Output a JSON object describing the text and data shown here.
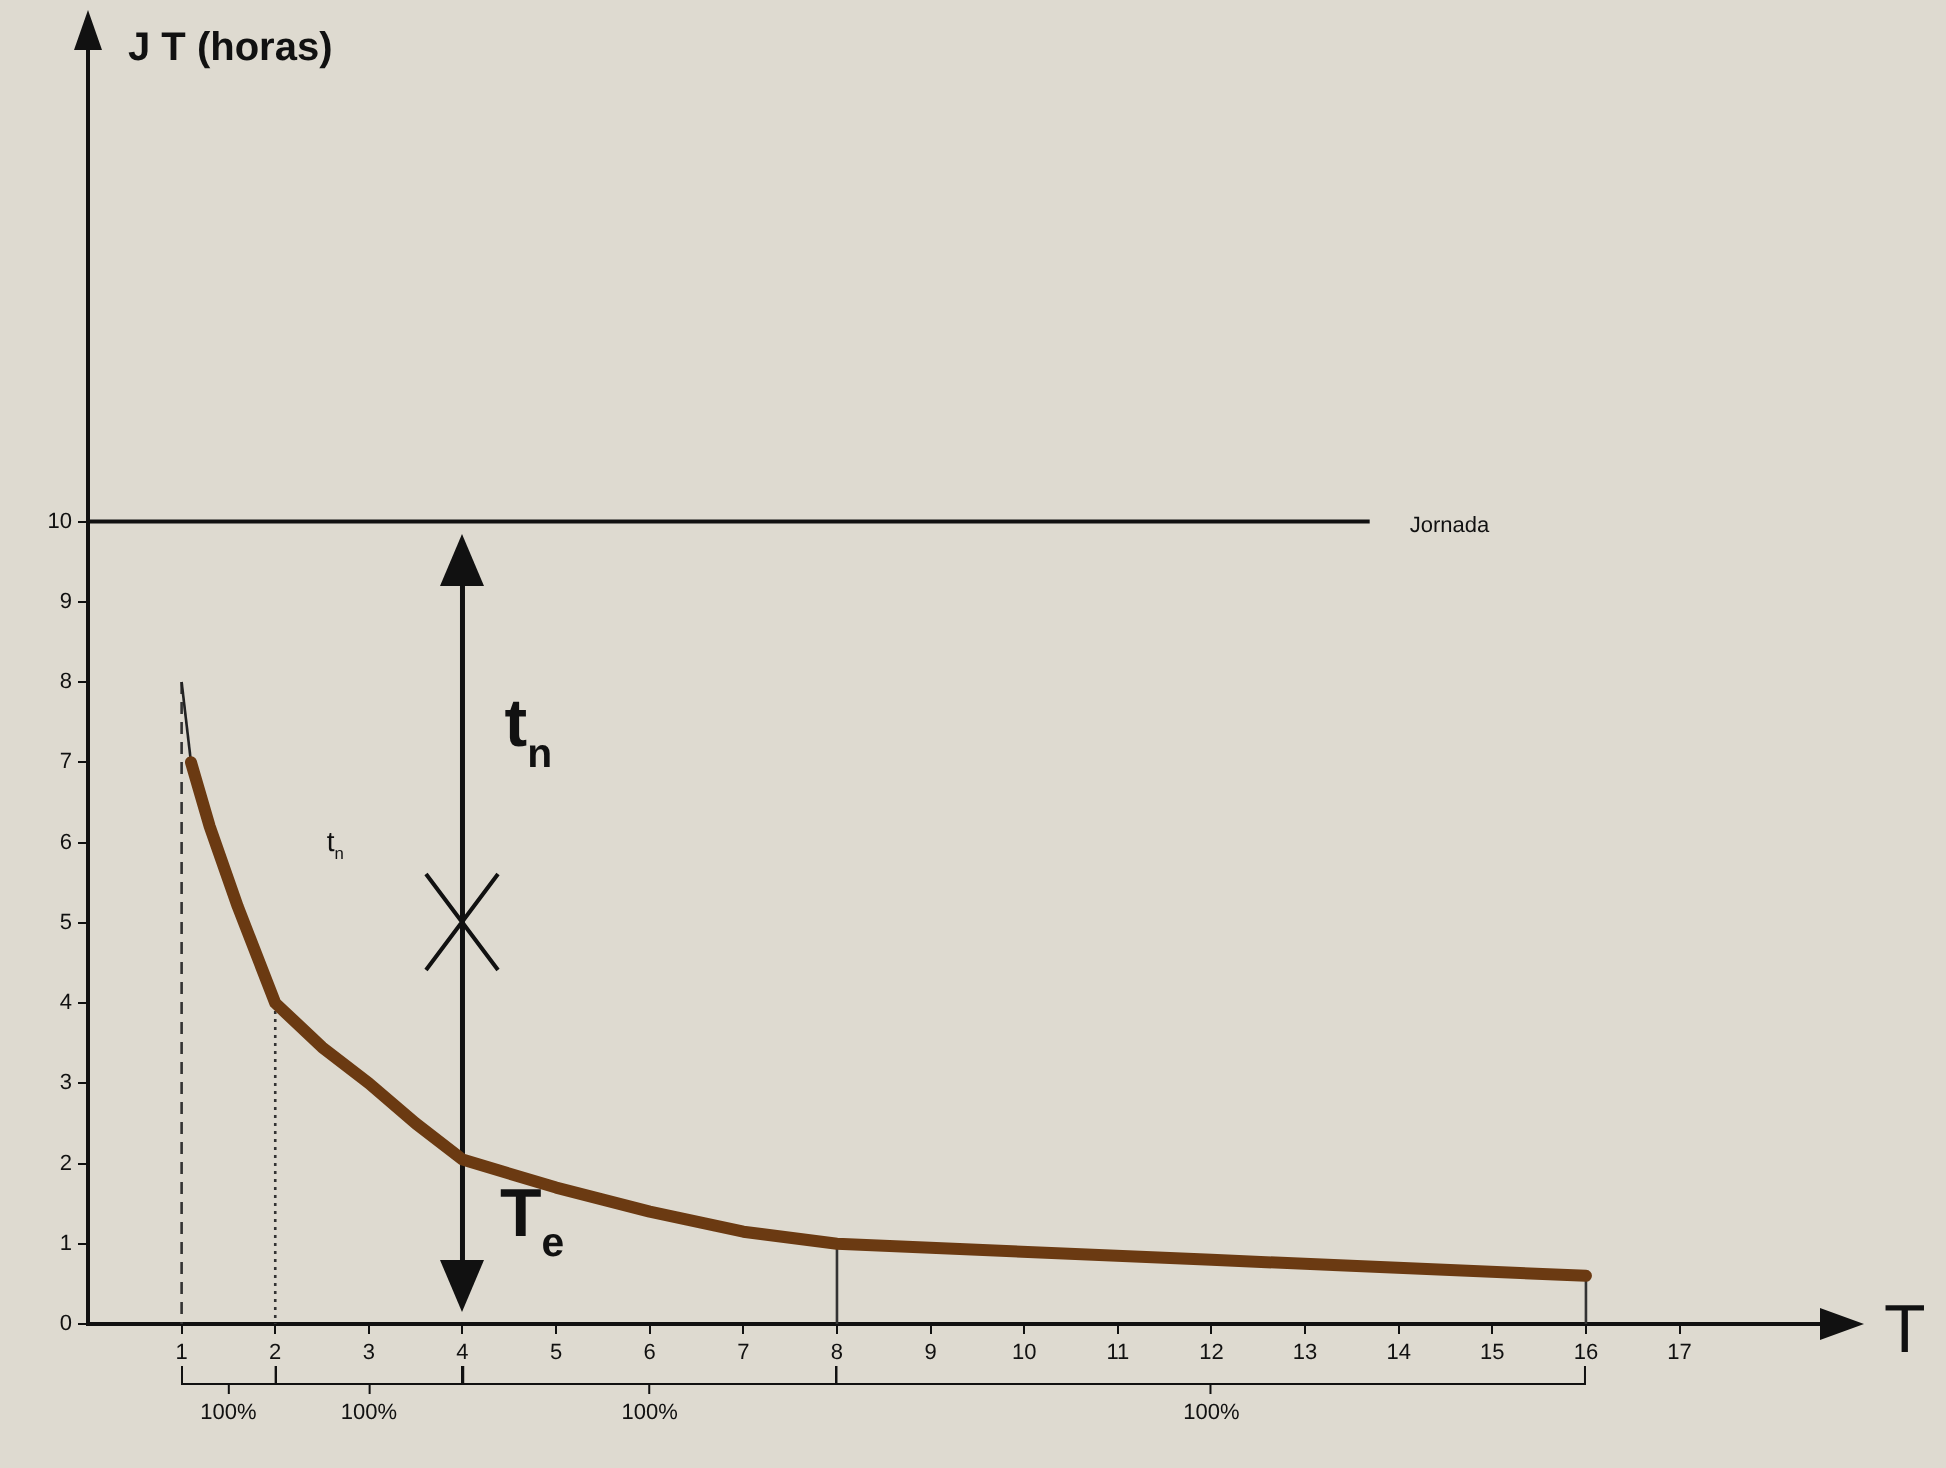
{
  "chart_data": {
    "type": "line",
    "ylabel": "J T (horas)",
    "xlabel": "T",
    "series": [
      {
        "color": "#6b3a12",
        "x": [
          1.1,
          1.3,
          1.6,
          2,
          2.5,
          3,
          3.5,
          4,
          5,
          6,
          7,
          8,
          12,
          16
        ],
        "values": [
          7,
          6.2,
          5.2,
          4,
          3.45,
          3,
          2.5,
          2.05,
          1.7,
          1.4,
          1.15,
          1,
          0.8,
          0.6
        ]
      },
      {
        "color": "#222222",
        "x": [
          1,
          1.1
        ],
        "values": [
          8,
          7
        ]
      },
      {
        "color": "#333333",
        "x": [
          1,
          1
        ],
        "values": [
          8,
          0
        ],
        "line_style": "dashed"
      },
      {
        "color": "#333333",
        "x": [
          2,
          2
        ],
        "values": [
          4,
          0
        ],
        "line_style": "dotted"
      },
      {
        "color": "#333333",
        "x": [
          8,
          8
        ],
        "values": [
          1,
          0
        ]
      },
      {
        "color": "#333333",
        "x": [
          16,
          16
        ],
        "values": [
          0.6,
          0
        ]
      }
    ],
    "xlim": [
      0,
      18.5
    ],
    "xticks": [
      1,
      2,
      3,
      4,
      5,
      6,
      7,
      8,
      9,
      10,
      11,
      12,
      13,
      14,
      15,
      16,
      17
    ],
    "ylim": [
      0,
      16
    ],
    "yticks": [
      0,
      1,
      2,
      3,
      4,
      5,
      6,
      7,
      8,
      9,
      10
    ],
    "ref_lines": [
      {
        "axis": "y",
        "value": 10,
        "label": "Jornada",
        "color": "#111111"
      },
      {
        "axis": "x",
        "value": 4,
        "color": "#111111"
      }
    ],
    "annotations": [
      "t$_{n}$",
      "t$_{n}$",
      "T$_{e}$",
      "100%",
      "100%",
      "100%",
      "100%"
    ],
    "grid": false,
    "legend": false,
    "marker": "none",
    "line_style": "solid"
  }
}
